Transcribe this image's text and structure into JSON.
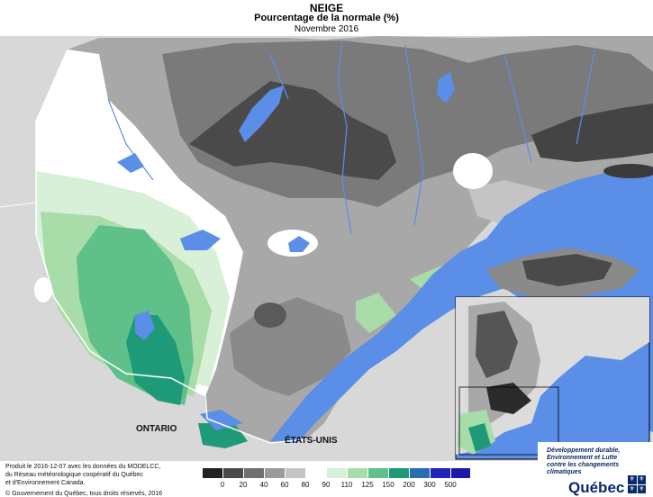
{
  "header": {
    "title": "NEIGE",
    "subtitle": "Pourcentage de la normale (%)",
    "period": "Novembre 2016"
  },
  "map": {
    "labels": {
      "ontario": "ONTARIO",
      "usa": "ÉTATS-UNIS"
    },
    "water_color": "#5b8ee6",
    "land_outside_color": "#dcdcdc"
  },
  "legend": {
    "ticks": [
      "0",
      "20",
      "40",
      "60",
      "80",
      "90",
      "110",
      "125",
      "150",
      "200",
      "300",
      "500"
    ],
    "colors": [
      "#222222",
      "#4a4a4a",
      "#707070",
      "#9a9a9a",
      "#c4c4c4",
      "#ffffff",
      "#d8f0d8",
      "#a8dca8",
      "#5fc08a",
      "#1e9a78",
      "#2a6cb0",
      "#2222b8",
      "#1a1aa8"
    ]
  },
  "credits": {
    "line1": "Produit le 2016-12-07 avec les données du MODELCC,",
    "line2": "du Réseau météorologique coopératif du Québec",
    "line3": "et d'Environnement Canada.",
    "line4": "© Gouvernement du Québec, tous droits réservés, 2016"
  },
  "brand": {
    "line1": "Développement durable,",
    "line2": "Environnement et Lutte",
    "line3": "contre les changements",
    "line4": "climatiques",
    "name": "Québec"
  }
}
